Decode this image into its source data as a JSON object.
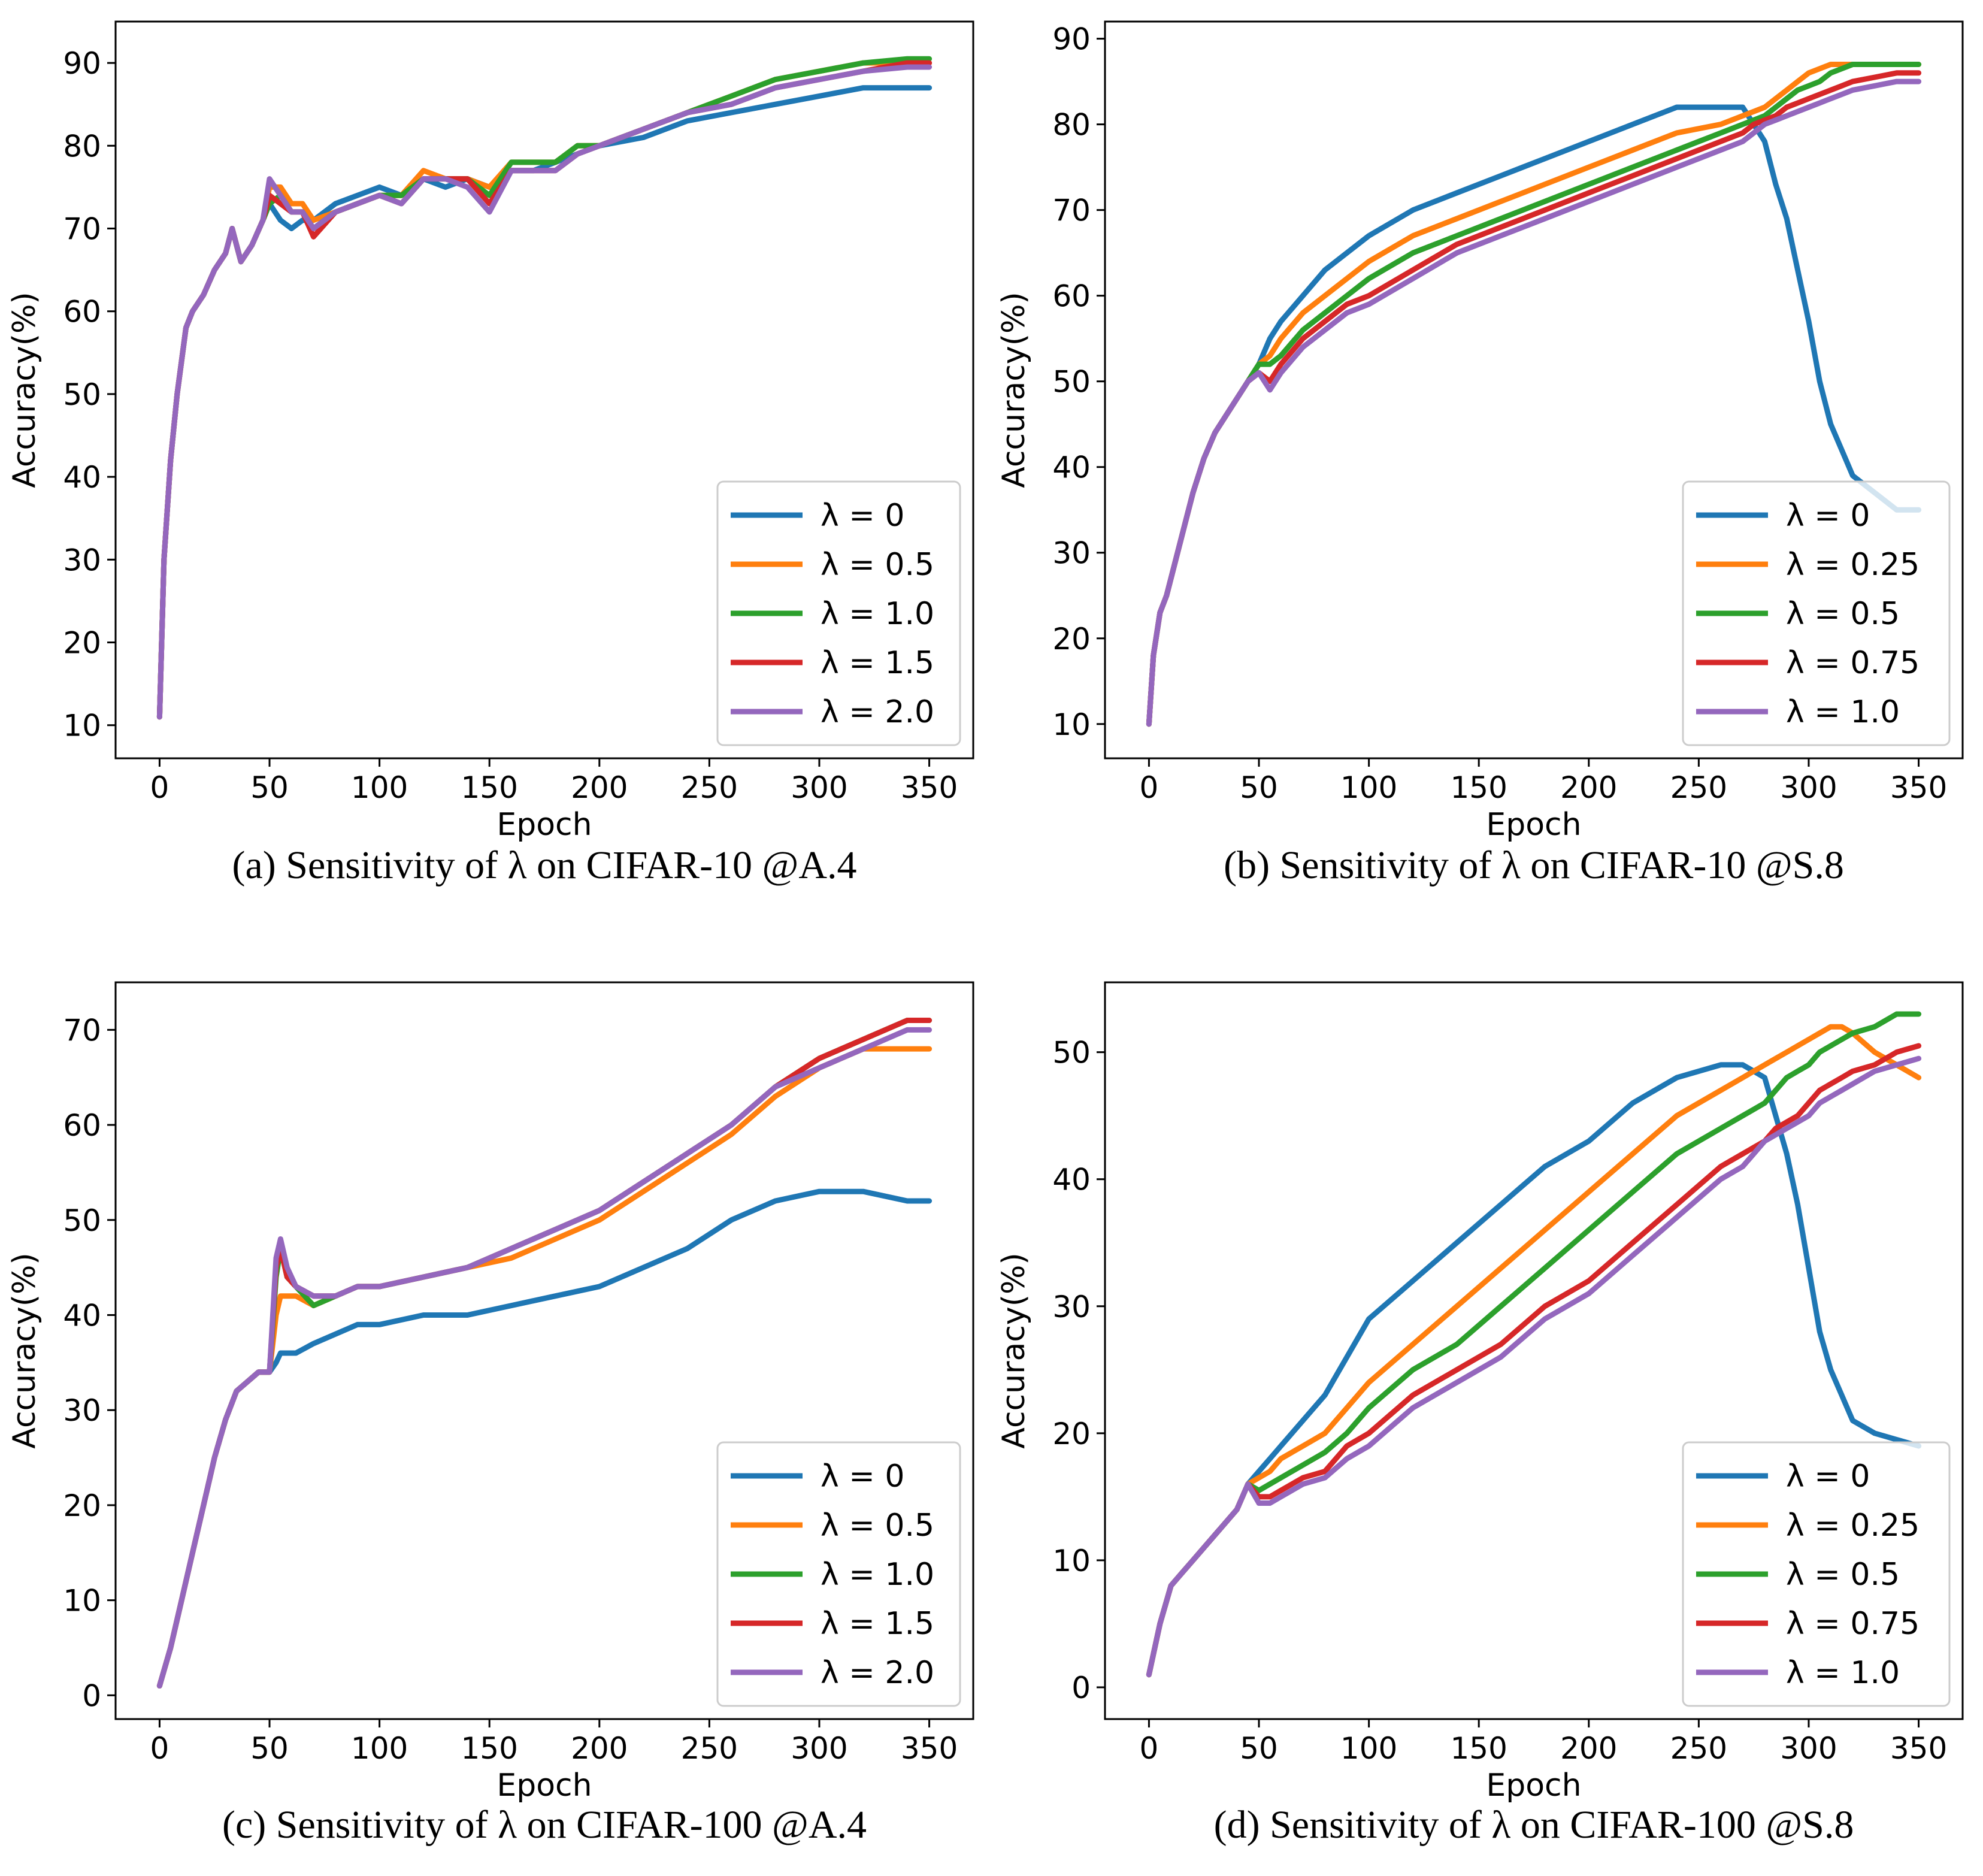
{
  "colors": {
    "blue": "#1f77b4",
    "orange": "#ff7f0e",
    "green": "#2ca02c",
    "red": "#d62728",
    "purple": "#9467bd"
  },
  "chart_data": [
    {
      "type": "line",
      "caption": "(a) Sensitivity of λ on CIFAR-10 @A.4",
      "xlabel": "Epoch",
      "ylabel": "Accuracy(%)",
      "xlim": [
        -20,
        370
      ],
      "ylim": [
        6,
        95
      ],
      "xticks": [
        0,
        50,
        100,
        150,
        200,
        250,
        300,
        350
      ],
      "yticks": [
        10,
        20,
        30,
        40,
        50,
        60,
        70,
        80,
        90
      ],
      "legend_position": "lower-right",
      "x": [
        0,
        2,
        5,
        8,
        12,
        15,
        20,
        25,
        30,
        33,
        37,
        42,
        47,
        50,
        55,
        60,
        65,
        70,
        80,
        90,
        100,
        110,
        120,
        130,
        140,
        150,
        160,
        170,
        180,
        190,
        200,
        220,
        240,
        260,
        280,
        300,
        320,
        340,
        350
      ],
      "series": [
        {
          "name": "λ = 0",
          "color": "blue",
          "values": [
            11,
            30,
            42,
            50,
            58,
            60,
            62,
            65,
            67,
            70,
            66,
            68,
            71,
            73,
            71,
            70,
            71,
            71,
            73,
            74,
            75,
            74,
            76,
            75,
            76,
            75,
            77,
            77,
            78,
            79,
            80,
            81,
            83,
            84,
            85,
            86,
            87,
            87,
            87
          ]
        },
        {
          "name": "λ = 0.5",
          "color": "orange",
          "values": [
            11,
            30,
            42,
            50,
            58,
            60,
            62,
            65,
            67,
            70,
            66,
            68,
            71,
            75,
            75,
            73,
            73,
            71,
            72,
            73,
            74,
            74,
            77,
            76,
            76,
            75,
            78,
            78,
            78,
            80,
            80,
            82,
            84,
            86,
            88,
            89,
            90,
            90,
            90
          ]
        },
        {
          "name": "λ = 1.0",
          "color": "green",
          "values": [
            11,
            30,
            42,
            50,
            58,
            60,
            62,
            65,
            67,
            70,
            66,
            68,
            71,
            73,
            74,
            72,
            72,
            70,
            72,
            73,
            74,
            74,
            76,
            76,
            76,
            74,
            78,
            78,
            78,
            80,
            80,
            82,
            84,
            86,
            88,
            89,
            90,
            90.5,
            90.5
          ]
        },
        {
          "name": "λ = 1.5",
          "color": "red",
          "values": [
            11,
            30,
            42,
            50,
            58,
            60,
            62,
            65,
            67,
            70,
            66,
            68,
            71,
            74,
            73,
            72,
            72,
            69,
            72,
            73,
            74,
            73,
            76,
            76,
            76,
            73,
            77,
            77,
            77,
            79,
            80,
            82,
            84,
            85,
            87,
            88,
            89,
            90,
            90
          ]
        },
        {
          "name": "λ = 2.0",
          "color": "purple",
          "values": [
            11,
            30,
            42,
            50,
            58,
            60,
            62,
            65,
            67,
            70,
            66,
            68,
            71,
            76,
            74,
            72,
            72,
            70,
            72,
            73,
            74,
            73,
            76,
            76,
            75,
            72,
            77,
            77,
            77,
            79,
            80,
            82,
            84,
            85,
            87,
            88,
            89,
            89.5,
            89.5
          ]
        }
      ]
    },
    {
      "type": "line",
      "caption": "(b) Sensitivity of λ on CIFAR-10 @S.8",
      "xlabel": "Epoch",
      "ylabel": "Accuracy(%)",
      "xlim": [
        -20,
        370
      ],
      "ylim": [
        6,
        92
      ],
      "xticks": [
        0,
        50,
        100,
        150,
        200,
        250,
        300,
        350
      ],
      "yticks": [
        10,
        20,
        30,
        40,
        50,
        60,
        70,
        80,
        90
      ],
      "legend_position": "lower-right",
      "x": [
        0,
        2,
        5,
        8,
        12,
        15,
        20,
        25,
        30,
        35,
        40,
        45,
        50,
        55,
        60,
        70,
        80,
        90,
        100,
        120,
        140,
        160,
        180,
        200,
        220,
        240,
        260,
        270,
        275,
        280,
        285,
        290,
        295,
        300,
        305,
        310,
        315,
        320,
        330,
        340,
        350
      ],
      "series": [
        {
          "name": "λ = 0",
          "color": "blue",
          "values": [
            10,
            18,
            23,
            25,
            29,
            32,
            37,
            41,
            44,
            46,
            48,
            50,
            52,
            55,
            57,
            60,
            63,
            65,
            67,
            70,
            72,
            74,
            76,
            78,
            80,
            82,
            82,
            82,
            80,
            78,
            73,
            69,
            63,
            57,
            50,
            45,
            42,
            39,
            37,
            35,
            35
          ]
        },
        {
          "name": "λ = 0.25",
          "color": "orange",
          "values": [
            10,
            18,
            23,
            25,
            29,
            32,
            37,
            41,
            44,
            46,
            48,
            50,
            52,
            53,
            55,
            58,
            60,
            62,
            64,
            67,
            69,
            71,
            73,
            75,
            77,
            79,
            80,
            81,
            81.5,
            82,
            83,
            84,
            85,
            86,
            86.5,
            87,
            87,
            87,
            87,
            87,
            87
          ]
        },
        {
          "name": "λ = 0.5",
          "color": "green",
          "values": [
            10,
            18,
            23,
            25,
            29,
            32,
            37,
            41,
            44,
            46,
            48,
            50,
            52,
            52,
            53,
            56,
            58,
            60,
            62,
            65,
            67,
            69,
            71,
            73,
            75,
            77,
            79,
            80,
            80.5,
            81,
            82,
            83,
            84,
            84.5,
            85,
            86,
            86.5,
            87,
            87,
            87,
            87
          ]
        },
        {
          "name": "λ = 0.75",
          "color": "red",
          "values": [
            10,
            18,
            23,
            25,
            29,
            32,
            37,
            41,
            44,
            46,
            48,
            50,
            51,
            50,
            52,
            55,
            57,
            59,
            60,
            63,
            66,
            68,
            70,
            72,
            74,
            76,
            78,
            79,
            80,
            80.5,
            81,
            82,
            82.5,
            83,
            83.5,
            84,
            84.5,
            85,
            85.5,
            86,
            86
          ]
        },
        {
          "name": "λ = 1.0",
          "color": "purple",
          "values": [
            10,
            18,
            23,
            25,
            29,
            32,
            37,
            41,
            44,
            46,
            48,
            50,
            51,
            49,
            51,
            54,
            56,
            58,
            59,
            62,
            65,
            67,
            69,
            71,
            73,
            75,
            77,
            78,
            79,
            80,
            80.5,
            81,
            81.5,
            82,
            82.5,
            83,
            83.5,
            84,
            84.5,
            85,
            85
          ]
        }
      ]
    },
    {
      "type": "line",
      "caption": "(c) Sensitivity of λ on CIFAR-100 @A.4",
      "xlabel": "Epoch",
      "ylabel": "Accuracy(%)",
      "xlim": [
        -20,
        370
      ],
      "ylim": [
        -2.5,
        75
      ],
      "xticks": [
        0,
        50,
        100,
        150,
        200,
        250,
        300,
        350
      ],
      "yticks": [
        0,
        10,
        20,
        30,
        40,
        50,
        60,
        70
      ],
      "legend_position": "lower-right",
      "x": [
        0,
        5,
        10,
        15,
        20,
        25,
        30,
        35,
        40,
        45,
        50,
        53,
        55,
        58,
        62,
        70,
        80,
        90,
        100,
        120,
        140,
        160,
        180,
        200,
        220,
        240,
        260,
        280,
        300,
        320,
        340,
        350
      ],
      "series": [
        {
          "name": "λ = 0",
          "color": "blue",
          "values": [
            1,
            5,
            10,
            15,
            20,
            25,
            29,
            32,
            33,
            34,
            34,
            35,
            36,
            36,
            36,
            37,
            38,
            39,
            39,
            40,
            40,
            41,
            42,
            43,
            45,
            47,
            50,
            52,
            53,
            53,
            52,
            52
          ]
        },
        {
          "name": "λ = 0.5",
          "color": "orange",
          "values": [
            1,
            5,
            10,
            15,
            20,
            25,
            29,
            32,
            33,
            34,
            34,
            40,
            42,
            42,
            42,
            41,
            42,
            43,
            43,
            44,
            45,
            46,
            48,
            50,
            53,
            56,
            59,
            63,
            66,
            68,
            68,
            68
          ]
        },
        {
          "name": "λ = 1.0",
          "color": "green",
          "values": [
            1,
            5,
            10,
            15,
            20,
            25,
            29,
            32,
            33,
            34,
            34,
            44,
            47,
            44,
            43,
            41,
            42,
            43,
            43,
            44,
            45,
            47,
            49,
            51,
            54,
            57,
            60,
            64,
            67,
            69,
            71,
            71
          ]
        },
        {
          "name": "λ = 1.5",
          "color": "red",
          "values": [
            1,
            5,
            10,
            15,
            20,
            25,
            29,
            32,
            33,
            34,
            34,
            45,
            47,
            44,
            43,
            42,
            42,
            43,
            43,
            44,
            45,
            47,
            49,
            51,
            54,
            57,
            60,
            64,
            67,
            69,
            71,
            71
          ]
        },
        {
          "name": "λ = 2.0",
          "color": "purple",
          "values": [
            1,
            5,
            10,
            15,
            20,
            25,
            29,
            32,
            33,
            34,
            34,
            46,
            48,
            45,
            43,
            42,
            42,
            43,
            43,
            44,
            45,
            47,
            49,
            51,
            54,
            57,
            60,
            64,
            66,
            68,
            70,
            70
          ]
        }
      ]
    },
    {
      "type": "line",
      "caption": "(d) Sensitivity of λ on CIFAR-100 @S.8",
      "xlabel": "Epoch",
      "ylabel": "Accuracy(%)",
      "xlim": [
        -20,
        370
      ],
      "ylim": [
        -2.5,
        55.5
      ],
      "xticks": [
        0,
        50,
        100,
        150,
        200,
        250,
        300,
        350
      ],
      "yticks": [
        0,
        10,
        20,
        30,
        40,
        50
      ],
      "legend_position": "lower-right",
      "x": [
        0,
        5,
        10,
        15,
        20,
        30,
        40,
        45,
        50,
        55,
        60,
        70,
        80,
        90,
        100,
        120,
        140,
        160,
        180,
        200,
        220,
        240,
        260,
        270,
        275,
        280,
        285,
        290,
        295,
        300,
        305,
        310,
        315,
        320,
        330,
        340,
        350
      ],
      "series": [
        {
          "name": "λ = 0",
          "color": "blue",
          "values": [
            1,
            5,
            8,
            9,
            10,
            12,
            14,
            16,
            17,
            18,
            19,
            21,
            23,
            26,
            29,
            32,
            35,
            38,
            41,
            43,
            46,
            48,
            49,
            49,
            48.5,
            48,
            45,
            42,
            38,
            33,
            28,
            25,
            23,
            21,
            20,
            19.5,
            19
          ]
        },
        {
          "name": "λ = 0.25",
          "color": "orange",
          "values": [
            1,
            5,
            8,
            9,
            10,
            12,
            14,
            16,
            16.5,
            17,
            18,
            19,
            20,
            22,
            24,
            27,
            30,
            33,
            36,
            39,
            42,
            45,
            47,
            48,
            48.5,
            49,
            49.5,
            50,
            50.5,
            51,
            51.5,
            52,
            52,
            51.5,
            50,
            49,
            48
          ]
        },
        {
          "name": "λ = 0.5",
          "color": "green",
          "values": [
            1,
            5,
            8,
            9,
            10,
            12,
            14,
            16,
            15.5,
            16,
            16.5,
            17.5,
            18.5,
            20,
            22,
            25,
            27,
            30,
            33,
            36,
            39,
            42,
            44,
            45,
            45.5,
            46,
            47,
            48,
            48.5,
            49,
            50,
            50.5,
            51,
            51.5,
            52,
            53,
            53
          ]
        },
        {
          "name": "λ = 0.75",
          "color": "red",
          "values": [
            1,
            5,
            8,
            9,
            10,
            12,
            14,
            16,
            15,
            15,
            15.5,
            16.5,
            17,
            19,
            20,
            23,
            25,
            27,
            30,
            32,
            35,
            38,
            41,
            42,
            42.5,
            43,
            44,
            44.5,
            45,
            46,
            47,
            47.5,
            48,
            48.5,
            49,
            50,
            50.5
          ]
        },
        {
          "name": "λ = 1.0",
          "color": "purple",
          "values": [
            1,
            5,
            8,
            9,
            10,
            12,
            14,
            16,
            14.5,
            14.5,
            15,
            16,
            16.5,
            18,
            19,
            22,
            24,
            26,
            29,
            31,
            34,
            37,
            40,
            41,
            42,
            43,
            43.5,
            44,
            44.5,
            45,
            46,
            46.5,
            47,
            47.5,
            48.5,
            49,
            49.5
          ]
        }
      ]
    }
  ]
}
